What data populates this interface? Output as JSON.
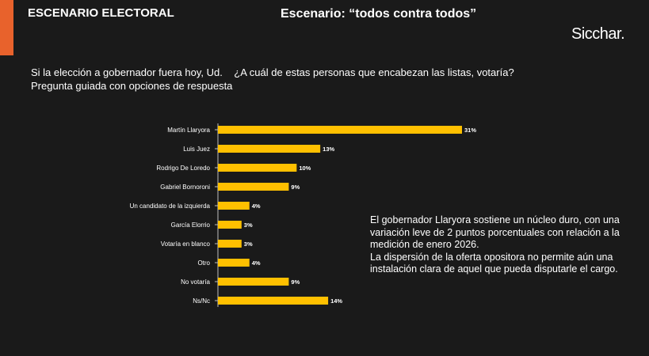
{
  "header": {
    "section_title": "ESCENARIO ELECTORAL",
    "scenario_title": "Escenario: “todos contra todos”",
    "brand": "Sicchar."
  },
  "question": {
    "line1": "Si la elección a gobernador fuera hoy, Ud.    ¿A cuál de estas personas que encabezan las listas, votaría?",
    "line2": "Pregunta guiada con opciones de respuesta"
  },
  "colors": {
    "accent": "#e8622c",
    "bar": "#ffc000",
    "background": "#1a1a1a",
    "axis": "#bfbfbf"
  },
  "chart_data": {
    "type": "bar",
    "orientation": "horizontal",
    "categories": [
      "Martín Llaryora",
      "Luis Juez",
      "Rodrigo De Loredo",
      "Gabriel Bornoroni",
      "Un candidato de la izquierda",
      "García Elorrio",
      "Votaría en blanco",
      "Otro",
      "No votaría",
      "Ns/Nc"
    ],
    "values": [
      31,
      13,
      10,
      9,
      4,
      3,
      3,
      4,
      9,
      14
    ],
    "data_labels": [
      "31%",
      "13%",
      "10%",
      "9%",
      "4%",
      "3%",
      "3%",
      "4%",
      "9%",
      "14%"
    ],
    "unit": "%",
    "xlim": [
      0,
      35
    ],
    "grid": false,
    "legend": "none"
  },
  "note": {
    "paragraph1": "El gobernador Llaryora sostiene un núcleo duro, con una variación leve de 2 puntos porcentuales con relación a la medición de enero 2026.",
    "paragraph2": "La dispersión de la oferta opositora no permite aún una instalación clara de aquel que pueda disputarle el cargo."
  }
}
